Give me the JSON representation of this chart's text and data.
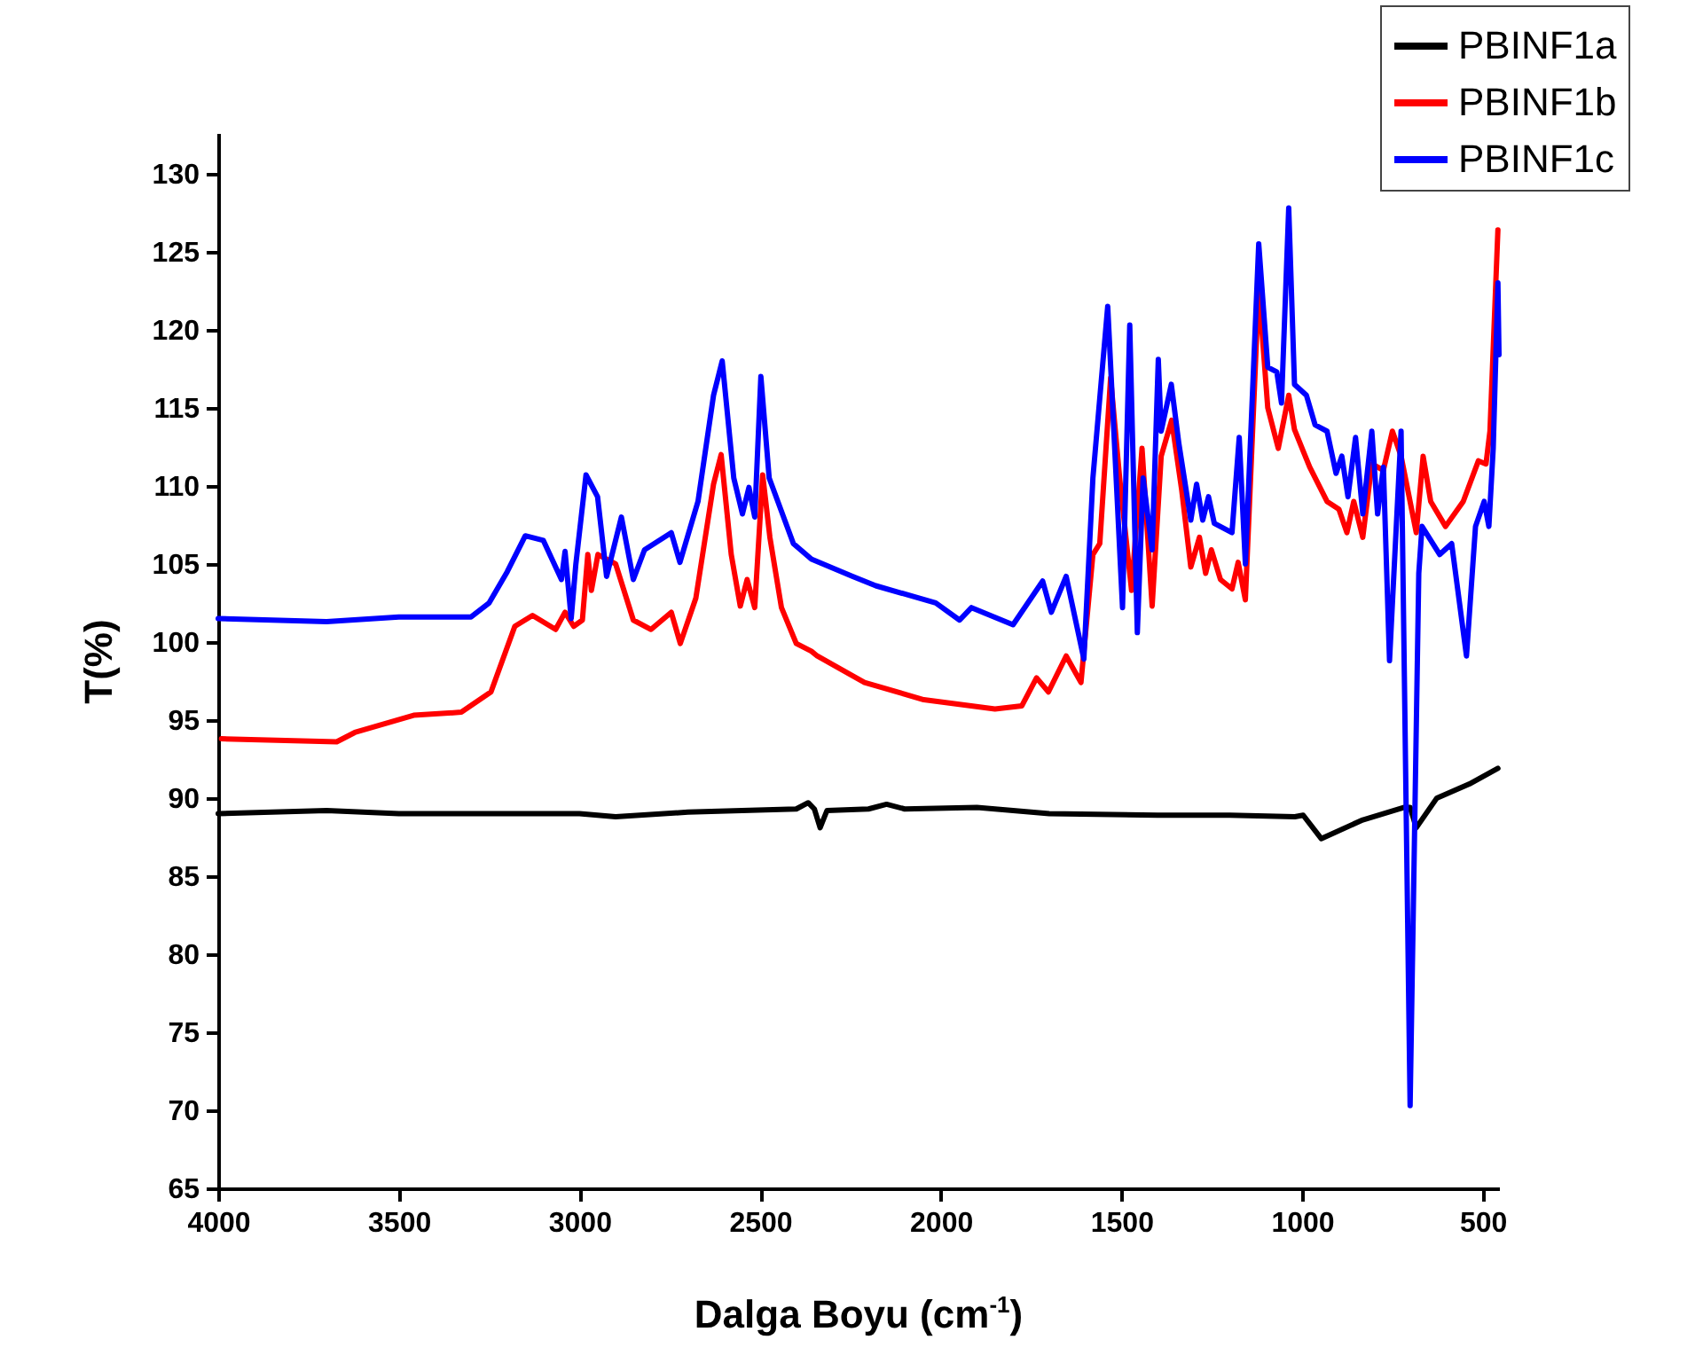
{
  "chart_data": {
    "type": "line",
    "xlabel": "Dalga Boyu (cm$^{-1}$)",
    "ylabel": "T(%)",
    "xlim": [
      4000,
      455
    ],
    "xticks": [
      4000,
      3500,
      3000,
      2500,
      2000,
      1500,
      1000,
      500
    ],
    "ylim": [
      65,
      132.6
    ],
    "yticks": [
      65,
      70,
      75,
      80,
      85,
      90,
      95,
      100,
      105,
      110,
      115,
      120,
      125,
      130
    ],
    "grid": false,
    "legend": "top right",
    "line_style": "solid",
    "marker": "none",
    "series": [
      {
        "name": "PBINF1a",
        "color": "#000000",
        "x": [
          4000,
          3700,
          3500,
          3000,
          2900,
          2700,
          2400,
          2367,
          2350,
          2334,
          2315,
          2200,
          2150,
          2100,
          1900,
          1700,
          1400,
          1200,
          1020,
          997,
          947,
          832,
          717,
          701,
          684,
          627,
          537,
          458
        ],
        "values": [
          89.0,
          89.2,
          89.0,
          89.0,
          88.8,
          89.1,
          89.3,
          89.7,
          89.3,
          88.1,
          89.2,
          89.3,
          89.6,
          89.3,
          89.4,
          89.0,
          88.9,
          88.9,
          88.8,
          88.9,
          87.4,
          88.6,
          89.4,
          89.4,
          88.1,
          90.0,
          90.9,
          91.9
        ]
      },
      {
        "name": "PBINF1b",
        "color": "#ff0000",
        "x": [
          3991,
          3672,
          3622,
          3459,
          3327,
          3245,
          3179,
          3130,
          3066,
          3040,
          3016,
          2992,
          2977,
          2967,
          2949,
          2900,
          2851,
          2802,
          2746,
          2721,
          2678,
          2629,
          2608,
          2580,
          2555,
          2536,
          2515,
          2493,
          2473,
          2441,
          2400,
          2358,
          2342,
          2211,
          2047,
          1850,
          1776,
          1735,
          1702,
          1653,
          1612,
          1579,
          1560,
          1530,
          1505,
          1472,
          1443,
          1415,
          1390,
          1361,
          1333,
          1308,
          1284,
          1267,
          1251,
          1226,
          1194,
          1177,
          1157,
          1120,
          1095,
          1066,
          1037,
          1021,
          979,
          931,
          898,
          876,
          857,
          832,
          807,
          775,
          750,
          726,
          684,
          665,
          644,
          603,
          554,
          512,
          491,
          480,
          458
        ],
        "values": [
          93.8,
          93.6,
          94.2,
          95.3,
          95.5,
          96.8,
          101.0,
          101.7,
          100.8,
          101.9,
          101.0,
          101.4,
          105.6,
          103.3,
          105.6,
          105.0,
          101.4,
          100.8,
          101.9,
          99.9,
          102.8,
          110.1,
          112.0,
          105.6,
          102.3,
          104.0,
          102.2,
          110.7,
          106.7,
          102.2,
          99.9,
          99.4,
          99.1,
          97.4,
          96.3,
          95.7,
          95.9,
          97.7,
          96.8,
          99.1,
          97.4,
          105.6,
          106.3,
          116.9,
          110.5,
          103.3,
          112.4,
          102.3,
          111.9,
          114.2,
          109.7,
          104.8,
          106.7,
          104.4,
          105.9,
          104.0,
          103.4,
          105.1,
          102.7,
          122.7,
          115.0,
          112.4,
          115.8,
          113.6,
          111.2,
          109.0,
          108.5,
          107.0,
          109.0,
          106.7,
          111.4,
          111.0,
          113.5,
          111.9,
          107.0,
          111.9,
          109.0,
          107.4,
          109.0,
          111.6,
          111.4,
          113.5,
          126.4
        ]
      },
      {
        "name": "PBINF1c",
        "color": "#0000ff",
        "x": [
          4000,
          3700,
          3500,
          3300,
          3250,
          3200,
          3150,
          3100,
          3050,
          3040,
          3023,
          3010,
          2982,
          2950,
          2925,
          2884,
          2851,
          2820,
          2746,
          2722,
          2672,
          2629,
          2605,
          2573,
          2549,
          2531,
          2515,
          2498,
          2475,
          2408,
          2358,
          2244,
          2180,
          2014,
          1948,
          1915,
          1800,
          1718,
          1694,
          1653,
          1604,
          1579,
          1538,
          1497,
          1477,
          1456,
          1440,
          1415,
          1398,
          1390,
          1362,
          1341,
          1308,
          1292,
          1275,
          1259,
          1243,
          1194,
          1174,
          1157,
          1120,
          1095,
          1070,
          1057,
          1037,
          1021,
          988,
          964,
          931,
          906,
          890,
          873,
          852,
          832,
          807,
          791,
          775,
          758,
          726,
          701,
          677,
          668,
          619,
          586,
          545,
          520,
          496,
          483,
          471,
          458,
          455
        ],
        "values": [
          101.5,
          101.3,
          101.6,
          101.6,
          102.5,
          104.5,
          106.8,
          106.5,
          104.0,
          105.8,
          101.5,
          105.0,
          110.7,
          109.3,
          104.2,
          108.0,
          104.0,
          105.9,
          107.0,
          105.1,
          109.0,
          115.8,
          118.0,
          110.5,
          108.2,
          109.9,
          108.0,
          117.0,
          110.5,
          106.3,
          105.3,
          104.2,
          103.6,
          102.5,
          101.4,
          102.2,
          101.1,
          103.9,
          101.9,
          104.2,
          98.9,
          110.5,
          121.5,
          102.2,
          120.3,
          100.6,
          110.5,
          105.9,
          118.1,
          113.5,
          116.5,
          112.7,
          107.8,
          110.1,
          107.8,
          109.3,
          107.6,
          107.0,
          113.1,
          105.0,
          125.5,
          117.6,
          117.3,
          115.3,
          127.8,
          116.5,
          115.8,
          113.9,
          113.5,
          110.8,
          111.9,
          109.3,
          113.1,
          108.2,
          113.5,
          108.2,
          111.2,
          98.8,
          113.5,
          70.3,
          104.4,
          107.4,
          105.6,
          106.3,
          99.1,
          107.4,
          109.0,
          107.4,
          112.4,
          123.0,
          118.4
        ]
      }
    ]
  }
}
